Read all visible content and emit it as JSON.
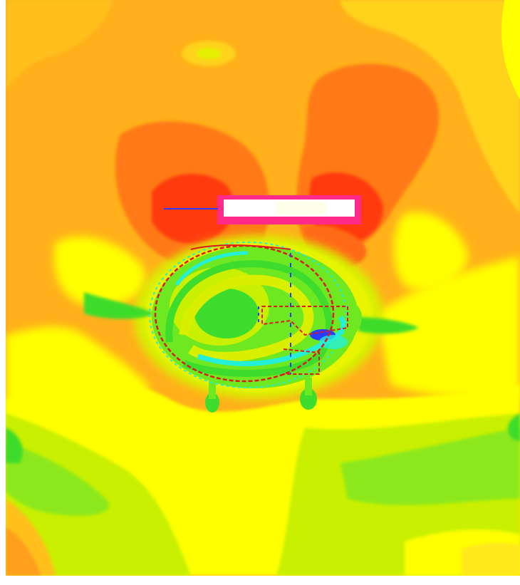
{
  "visualization": {
    "kind": "color-field-map",
    "colors": {
      "hot": "#ff3a10",
      "warm": "#ff7a18",
      "orange": "#ffa21a",
      "yellow_orange": "#ffc01a",
      "yellow": "#ffff00",
      "yellow_green": "#d8f000",
      "light_green": "#a8ee18",
      "green": "#6ee820",
      "bright_green": "#3edc2c",
      "cyan": "#24f0d8",
      "blue": "#2a3cff",
      "red_contour": "#e01818",
      "magenta_outline": "#ff2a8a",
      "white_patch": "#ffffff"
    },
    "elements": {
      "probe_line": "blue-line",
      "white_patch": "rectangle",
      "central_region": "green-blob-with-contours"
    }
  }
}
